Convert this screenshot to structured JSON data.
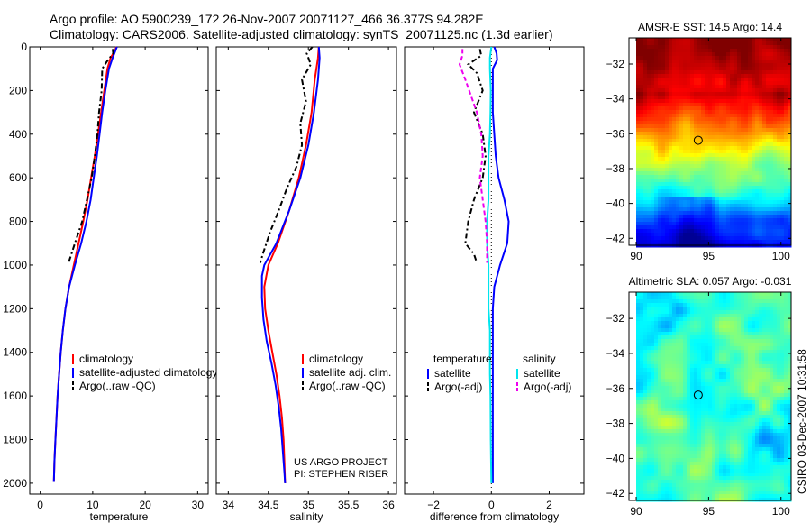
{
  "header": {
    "line1": "Argo profile: AO 5900239_172 26-Nov-2007 20071127_466 36.377S 94.282E",
    "line2": "Climatology: CARS2006. Satellite-adjusted climatology: synTS_20071125.nc (1.3d earlier)"
  },
  "credit": "CSIRO 03-Dec-2007 10:31:58",
  "colors": {
    "climatology": "#ff0000",
    "satellite": "#0000ff",
    "argo": "#000000",
    "satellite_salinity": "#00e5ee",
    "argo_salinity": "#ee00ee"
  },
  "chart_data": [
    {
      "id": "temperature",
      "type": "line",
      "xlabel": "temperature",
      "ylabel": "",
      "xlim": [
        -2,
        32
      ],
      "ylim": [
        2050,
        0
      ],
      "xticks": [
        0,
        10,
        20,
        30
      ],
      "yticks": [
        0,
        200,
        400,
        600,
        800,
        1000,
        1200,
        1400,
        1600,
        1800,
        2000
      ],
      "legend": {
        "position": "lower-right",
        "entries": [
          "climatology",
          "satellite-adjusted climatology",
          "Argo(..raw -QC)"
        ]
      },
      "series": [
        {
          "name": "climatology",
          "color": "#ff0000",
          "dash": "",
          "points": [
            [
              14.5,
              0
            ],
            [
              14.2,
              20
            ],
            [
              13.4,
              50
            ],
            [
              12.8,
              100
            ],
            [
              12.2,
              200
            ],
            [
              11.6,
              300
            ],
            [
              11.0,
              400
            ],
            [
              10.4,
              500
            ],
            [
              9.7,
              600
            ],
            [
              9.0,
              700
            ],
            [
              8.2,
              800
            ],
            [
              7.3,
              900
            ],
            [
              6.4,
              1000
            ],
            [
              5.5,
              1100
            ],
            [
              4.8,
              1200
            ],
            [
              4.3,
              1300
            ],
            [
              3.9,
              1400
            ],
            [
              3.6,
              1500
            ],
            [
              3.3,
              1600
            ],
            [
              3.1,
              1700
            ],
            [
              2.9,
              1800
            ],
            [
              2.7,
              1900
            ],
            [
              2.6,
              1990
            ]
          ]
        },
        {
          "name": "satellite-adjusted climatology",
          "color": "#0000ff",
          "dash": "",
          "points": [
            [
              14.6,
              0
            ],
            [
              14.3,
              20
            ],
            [
              13.8,
              50
            ],
            [
              13.1,
              100
            ],
            [
              12.4,
              200
            ],
            [
              11.8,
              300
            ],
            [
              11.3,
              400
            ],
            [
              10.8,
              500
            ],
            [
              10.2,
              600
            ],
            [
              9.6,
              700
            ],
            [
              8.8,
              800
            ],
            [
              7.8,
              900
            ],
            [
              6.6,
              1000
            ],
            [
              5.5,
              1100
            ],
            [
              4.8,
              1200
            ],
            [
              4.3,
              1300
            ],
            [
              3.9,
              1400
            ],
            [
              3.6,
              1500
            ],
            [
              3.3,
              1600
            ],
            [
              3.1,
              1700
            ],
            [
              2.9,
              1800
            ],
            [
              2.7,
              1900
            ],
            [
              2.6,
              1990
            ]
          ]
        },
        {
          "name": "Argo(..raw -QC)",
          "color": "#000000",
          "dash": "6,3,2,3",
          "points": [
            [
              13.8,
              10
            ],
            [
              13.9,
              30
            ],
            [
              12.9,
              60
            ],
            [
              11.8,
              100
            ],
            [
              11.7,
              200
            ],
            [
              11.2,
              300
            ],
            [
              10.9,
              400
            ],
            [
              10.4,
              500
            ],
            [
              9.8,
              600
            ],
            [
              8.9,
              700
            ],
            [
              8.0,
              800
            ],
            [
              6.6,
              900
            ],
            [
              5.4,
              990
            ]
          ]
        }
      ]
    },
    {
      "id": "salinity",
      "type": "line",
      "xlabel": "salinity",
      "ylabel": "",
      "xlim": [
        33.85,
        36.1
      ],
      "ylim": [
        2050,
        0
      ],
      "xticks": [
        34,
        34.5,
        35,
        35.5,
        36
      ],
      "yticks": [
        0,
        200,
        400,
        600,
        800,
        1000,
        1200,
        1400,
        1600,
        1800,
        2000
      ],
      "legend": {
        "position": "lower-right",
        "entries": [
          "climatology",
          "satellite adj. clim.",
          "Argo(..raw -QC)"
        ]
      },
      "annotations": [
        "US ARGO PROJECT",
        "PI: STEPHEN RISER"
      ],
      "series": [
        {
          "name": "climatology",
          "color": "#ff0000",
          "dash": "",
          "points": [
            [
              35.13,
              0
            ],
            [
              35.12,
              50
            ],
            [
              35.08,
              150
            ],
            [
              35.04,
              300
            ],
            [
              34.97,
              450
            ],
            [
              34.88,
              600
            ],
            [
              34.76,
              750
            ],
            [
              34.62,
              900
            ],
            [
              34.5,
              1000
            ],
            [
              34.45,
              1100
            ],
            [
              34.46,
              1200
            ],
            [
              34.5,
              1300
            ],
            [
              34.55,
              1400
            ],
            [
              34.6,
              1500
            ],
            [
              34.64,
              1600
            ],
            [
              34.67,
              1700
            ],
            [
              34.69,
              1800
            ],
            [
              34.7,
              1900
            ],
            [
              34.71,
              2000
            ]
          ]
        },
        {
          "name": "satellite adj. clim.",
          "color": "#0000ff",
          "dash": "",
          "points": [
            [
              35.13,
              0
            ],
            [
              35.14,
              50
            ],
            [
              35.12,
              150
            ],
            [
              35.07,
              300
            ],
            [
              35.0,
              450
            ],
            [
              34.9,
              600
            ],
            [
              34.76,
              750
            ],
            [
              34.6,
              900
            ],
            [
              34.45,
              1000
            ],
            [
              34.42,
              1050
            ],
            [
              34.42,
              1150
            ],
            [
              34.44,
              1250
            ],
            [
              34.48,
              1350
            ],
            [
              34.54,
              1450
            ],
            [
              34.59,
              1550
            ],
            [
              34.63,
              1650
            ],
            [
              34.66,
              1750
            ],
            [
              34.68,
              1850
            ],
            [
              34.7,
              1950
            ],
            [
              34.71,
              2000
            ]
          ]
        },
        {
          "name": "Argo(..raw -QC)",
          "color": "#000000",
          "dash": "6,3,2,3",
          "points": [
            [
              35.05,
              0
            ],
            [
              34.98,
              30
            ],
            [
              35.03,
              80
            ],
            [
              34.92,
              150
            ],
            [
              34.97,
              250
            ],
            [
              34.9,
              350
            ],
            [
              34.92,
              450
            ],
            [
              34.85,
              550
            ],
            [
              34.73,
              650
            ],
            [
              34.63,
              750
            ],
            [
              34.52,
              850
            ],
            [
              34.43,
              950
            ],
            [
              34.4,
              990
            ]
          ]
        }
      ]
    },
    {
      "id": "difference",
      "type": "line",
      "xlabel": "difference from climatology",
      "ylabel": "",
      "xlim": [
        -3,
        3.2
      ],
      "ylim": [
        2050,
        0
      ],
      "xticks": [
        -2,
        0,
        2
      ],
      "yticks": [
        0,
        200,
        400,
        600,
        800,
        1000,
        1200,
        1400,
        1600,
        1800,
        2000
      ],
      "legend": {
        "position": "lower-right",
        "groups": [
          {
            "title": "temperature",
            "entries": [
              "satellite",
              "Argo(-adj)"
            ]
          },
          {
            "title": "salinity",
            "entries": [
              "satellite",
              "Argo(-adj)"
            ]
          }
        ]
      },
      "series": [
        {
          "name": "temperature satellite",
          "color": "#0000ff",
          "dash": "",
          "points": [
            [
              0.1,
              0
            ],
            [
              0.18,
              30
            ],
            [
              0.2,
              60
            ],
            [
              0.05,
              100
            ],
            [
              0.05,
              200
            ],
            [
              0.05,
              300
            ],
            [
              0.1,
              400
            ],
            [
              0.15,
              500
            ],
            [
              0.25,
              600
            ],
            [
              0.45,
              700
            ],
            [
              0.6,
              800
            ],
            [
              0.55,
              900
            ],
            [
              0.3,
              1000
            ],
            [
              0.1,
              1100
            ],
            [
              0.05,
              1200
            ],
            [
              0.05,
              1400
            ],
            [
              0.05,
              1600
            ],
            [
              0.05,
              1800
            ],
            [
              0.05,
              2000
            ]
          ]
        },
        {
          "name": "temperature Argo(-adj)",
          "color": "#000000",
          "dash": "6,3,2,3",
          "points": [
            [
              -0.4,
              10
            ],
            [
              -0.35,
              40
            ],
            [
              -0.8,
              80
            ],
            [
              -0.5,
              120
            ],
            [
              -0.3,
              200
            ],
            [
              -0.6,
              300
            ],
            [
              -0.3,
              400
            ],
            [
              -0.2,
              500
            ],
            [
              -0.3,
              600
            ],
            [
              -0.6,
              700
            ],
            [
              -0.8,
              800
            ],
            [
              -0.9,
              900
            ],
            [
              -0.6,
              950
            ],
            [
              -0.5,
              990
            ]
          ]
        },
        {
          "name": "salinity satellite",
          "color": "#00e5ee",
          "dash": "",
          "points": [
            [
              0.0,
              0
            ],
            [
              -0.05,
              50
            ],
            [
              -0.05,
              100
            ],
            [
              -0.02,
              200
            ],
            [
              -0.03,
              300
            ],
            [
              -0.05,
              400
            ],
            [
              -0.1,
              500
            ],
            [
              -0.1,
              600
            ],
            [
              -0.1,
              700
            ],
            [
              -0.15,
              800
            ],
            [
              -0.15,
              900
            ],
            [
              -0.1,
              1000
            ],
            [
              -0.1,
              1100
            ],
            [
              -0.1,
              1200
            ],
            [
              -0.05,
              1300
            ],
            [
              -0.05,
              1400
            ],
            [
              -0.05,
              1500
            ],
            [
              -0.03,
              1600
            ],
            [
              -0.02,
              1800
            ],
            [
              0.0,
              2000
            ]
          ]
        },
        {
          "name": "salinity Argo(-adj)",
          "color": "#ee00ee",
          "dash": "5,3",
          "points": [
            [
              -1.0,
              10
            ],
            [
              -1.0,
              40
            ],
            [
              -1.1,
              80
            ],
            [
              -0.9,
              150
            ],
            [
              -0.5,
              300
            ],
            [
              -0.35,
              400
            ],
            [
              -0.3,
              500
            ],
            [
              -0.4,
              600
            ],
            [
              -0.3,
              700
            ],
            [
              -0.2,
              800
            ],
            [
              -0.15,
              900
            ],
            [
              -0.15,
              990
            ]
          ]
        }
      ]
    },
    {
      "id": "sst_map",
      "type": "heatmap",
      "title": "AMSR-E SST: 14.5 Argo: 14.4",
      "xlim": [
        89.5,
        100.7
      ],
      "ylim": [
        -42.4,
        -30.5
      ],
      "xticks": [
        90,
        95,
        100
      ],
      "yticks": [
        -32,
        -34,
        -36,
        -38,
        -40,
        -42
      ],
      "data_xrange": [
        90,
        100.7
      ],
      "data_yrange": [
        -42.4,
        -30.5
      ],
      "field": "sst",
      "marker": {
        "lon": 94.282,
        "lat": -36.377
      }
    },
    {
      "id": "sla_map",
      "type": "heatmap",
      "title": "Altimetric SLA: 0.057 Argo: -0.031",
      "xlim": [
        89.5,
        100.7
      ],
      "ylim": [
        -42.4,
        -30.5
      ],
      "xticks": [
        90,
        95,
        100
      ],
      "yticks": [
        -32,
        -34,
        -36,
        -38,
        -40,
        -42
      ],
      "data_xrange": [
        90,
        100.7
      ],
      "data_yrange": [
        -42.4,
        -30.5
      ],
      "field": "sla",
      "marker": {
        "lon": 94.282,
        "lat": -36.377
      }
    }
  ]
}
